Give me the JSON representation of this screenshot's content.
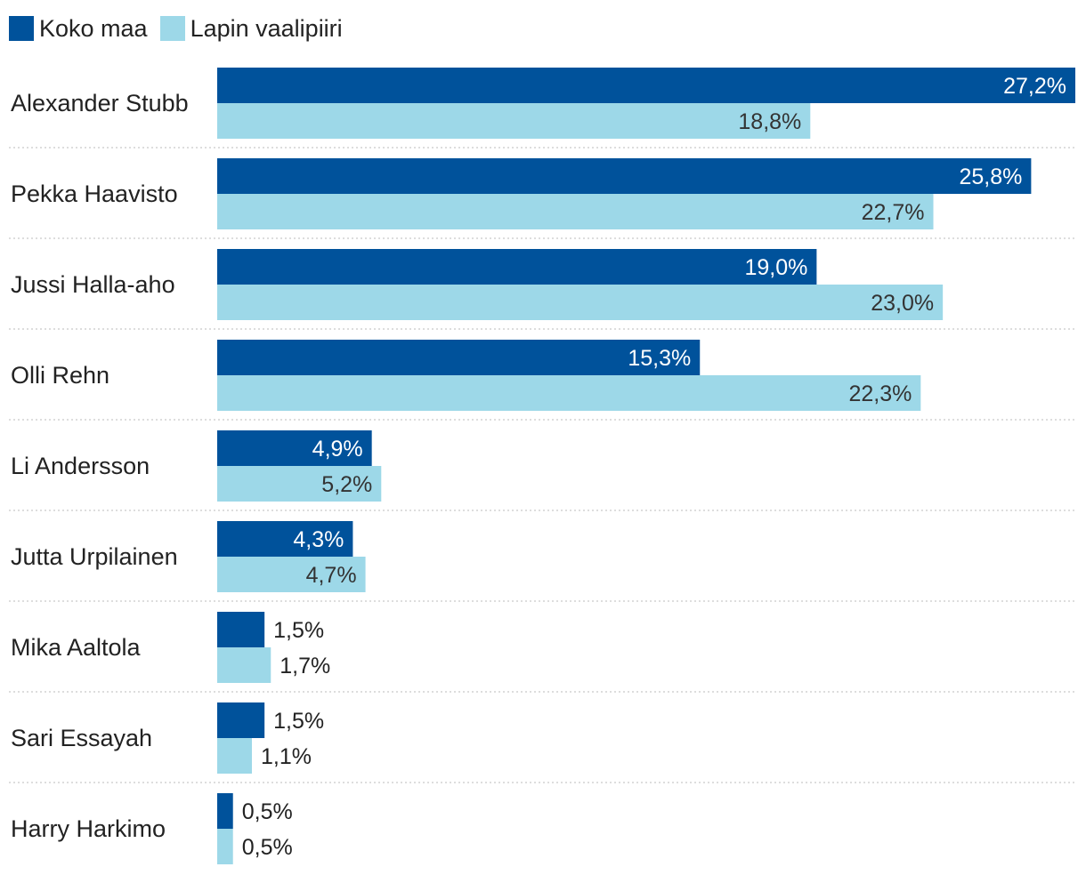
{
  "colors": {
    "koko_maa": "#00529b",
    "lapin_vaalipiiri": "#9dd8e8",
    "label_inside_dark": "#ffffff",
    "label_inside_light": "#333333",
    "label_outside": "#222222",
    "separator": "#bbbbbb"
  },
  "legend": {
    "series1_label": "Koko maa",
    "series2_label": "Lapin vaalipiiri"
  },
  "chart_data": {
    "type": "bar",
    "orientation": "horizontal",
    "title": "",
    "xlabel": "",
    "ylabel": "",
    "xlim": [
      0,
      27.2
    ],
    "grid": false,
    "legend_position": "top-left",
    "categories": [
      "Alexander Stubb",
      "Pekka Haavisto",
      "Jussi Halla-aho",
      "Olli Rehn",
      "Li Andersson",
      "Jutta Urpilainen",
      "Mika Aaltola",
      "Sari Essayah",
      "Harry Harkimo"
    ],
    "series": [
      {
        "name": "Koko maa",
        "values": [
          27.2,
          25.8,
          19.0,
          15.3,
          4.9,
          4.3,
          1.5,
          1.5,
          0.5
        ],
        "labels": [
          "27,2%",
          "25,8%",
          "19,0%",
          "15,3%",
          "4,9%",
          "4,3%",
          "1,5%",
          "1,5%",
          "0,5%"
        ]
      },
      {
        "name": "Lapin vaalipiiri",
        "values": [
          18.8,
          22.7,
          23.0,
          22.3,
          5.2,
          4.7,
          1.7,
          1.1,
          0.5
        ],
        "labels": [
          "18,8%",
          "22,7%",
          "23,0%",
          "22,3%",
          "5,2%",
          "4,7%",
          "1,7%",
          "1,1%",
          "0,5%"
        ]
      }
    ]
  }
}
